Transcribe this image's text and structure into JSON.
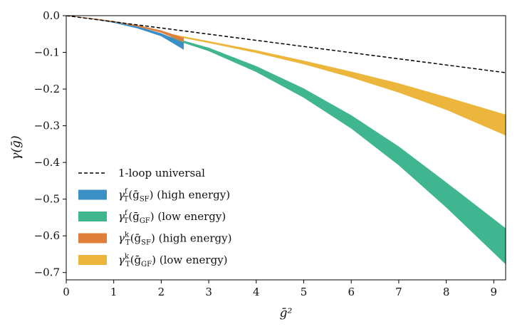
{
  "chart_data": {
    "type": "area",
    "xlabel": "ḡ²",
    "ylabel": "γ(ḡ)",
    "xlim": [
      0,
      9.25
    ],
    "ylim": [
      -0.72,
      0.0
    ],
    "xticks": [
      0,
      1,
      2,
      3,
      4,
      5,
      6,
      7,
      8,
      9
    ],
    "yticks": [
      0.0,
      -0.1,
      -0.2,
      -0.3,
      -0.4,
      -0.5,
      -0.6,
      -0.7
    ],
    "xtick_labels": [
      "0",
      "1",
      "2",
      "3",
      "4",
      "5",
      "6",
      "7",
      "8",
      "9"
    ],
    "ytick_labels": [
      "0.0",
      "−0.1",
      "−0.2",
      "−0.3",
      "−0.4",
      "−0.5",
      "−0.6",
      "−0.7"
    ],
    "grid": false,
    "legend_position": "lower-left",
    "series": [
      {
        "name": "1-loop universal",
        "kind": "line",
        "style": "dashed",
        "color": "#000000",
        "x": [
          0,
          9.25
        ],
        "y": [
          0,
          -0.1554
        ]
      },
      {
        "name": "γT f(ḡSF) (high energy)",
        "kind": "band",
        "color": "#3b8fc6",
        "x": [
          0,
          0.5,
          1.0,
          1.5,
          2.0,
          2.47
        ],
        "y_upper": [
          0,
          -0.0072,
          -0.0166,
          -0.0296,
          -0.0486,
          -0.0741
        ],
        "y_lower": [
          0,
          -0.0079,
          -0.0189,
          -0.0341,
          -0.0556,
          -0.0919
        ]
      },
      {
        "name": "γT f(ḡGF) (low energy)",
        "kind": "band",
        "color": "#3fb68f",
        "x": [
          2.1,
          3,
          4,
          5,
          6,
          7,
          8,
          9.25
        ],
        "y_upper": [
          -0.055,
          -0.088,
          -0.138,
          -0.199,
          -0.272,
          -0.357,
          -0.455,
          -0.58
        ],
        "y_lower": [
          -0.058,
          -0.096,
          -0.153,
          -0.223,
          -0.307,
          -0.407,
          -0.522,
          -0.677
        ]
      },
      {
        "name": "γT k(ḡSF) (high energy)",
        "kind": "band",
        "color": "#e07f3a",
        "x": [
          0,
          0.5,
          1.0,
          1.5,
          2.0,
          2.47
        ],
        "y_upper": [
          0,
          -0.0068,
          -0.0152,
          -0.0262,
          -0.0408,
          -0.0608
        ],
        "y_lower": [
          0,
          -0.0074,
          -0.0167,
          -0.0291,
          -0.0457,
          -0.0718
        ]
      },
      {
        "name": "γT k(ḡGF) (low energy)",
        "kind": "band",
        "color": "#ecb63c",
        "x": [
          2.1,
          3,
          4,
          5,
          6,
          7,
          8,
          9.25
        ],
        "y_upper": [
          -0.048,
          -0.07,
          -0.095,
          -0.123,
          -0.153,
          -0.185,
          -0.222,
          -0.27
        ],
        "y_lower": [
          -0.051,
          -0.074,
          -0.101,
          -0.132,
          -0.168,
          -0.209,
          -0.256,
          -0.326
        ]
      }
    ]
  },
  "legend": {
    "items": [
      {
        "kind": "line",
        "color": "#000000",
        "main": "1-loop universal",
        "sup": "",
        "sub": "",
        "tail": ""
      },
      {
        "kind": "band",
        "color": "#3b8fc6",
        "main": "γ",
        "sup": "f",
        "sub": "T",
        "arg": "(ḡ",
        "argsub": "SF",
        "tail": ") (high energy)"
      },
      {
        "kind": "band",
        "color": "#3fb68f",
        "main": "γ",
        "sup": "f",
        "sub": "T",
        "arg": "(ḡ",
        "argsub": "GF",
        "tail": ") (low energy)"
      },
      {
        "kind": "band",
        "color": "#e07f3a",
        "main": "γ",
        "sup": "k",
        "sub": "T",
        "arg": "(ḡ",
        "argsub": "SF",
        "tail": ") (high energy)"
      },
      {
        "kind": "band",
        "color": "#ecb63c",
        "main": "γ",
        "sup": "k",
        "sub": "T",
        "arg": "(ḡ",
        "argsub": "GF",
        "tail": ") (low energy)"
      }
    ]
  }
}
